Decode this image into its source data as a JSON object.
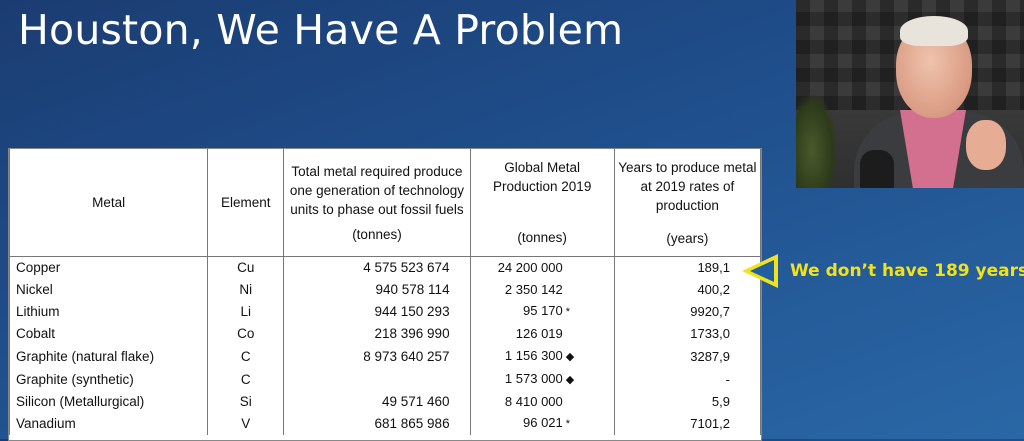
{
  "slide": {
    "title": "Houston, We Have A Problem"
  },
  "table": {
    "headers": {
      "metal": "Metal",
      "element": "Element",
      "total": "Total metal required produce one generation of technology units to phase out fossil fuels",
      "total_unit": "(tonnes)",
      "production": "Global Metal Production 2019",
      "production_unit": "(tonnes)",
      "years": "Years to produce metal at 2019 rates of production",
      "years_unit": "(years)"
    },
    "rows": [
      {
        "metal": "Copper",
        "element": "Cu",
        "total": "4 575 523 674",
        "production": "24 200 000",
        "mark": "",
        "years": "189,1"
      },
      {
        "metal": "Nickel",
        "element": "Ni",
        "total": "940 578 114",
        "production": "2 350 142",
        "mark": "",
        "years": "400,2"
      },
      {
        "metal": "Lithium",
        "element": "Li",
        "total": "944 150 293",
        "production": "95 170",
        "mark": "*",
        "years": "9920,7"
      },
      {
        "metal": "Cobalt",
        "element": "Co",
        "total": "218 396 990",
        "production": "126 019",
        "mark": "",
        "years": "1733,0"
      },
      {
        "metal": "Graphite (natural flake)",
        "element": "C",
        "total": "8 973 640 257",
        "production": "1 156 300",
        "mark": "◆",
        "years": "3287,9"
      },
      {
        "metal": "Graphite (synthetic)",
        "element": "C",
        "total": "",
        "production": "1 573 000",
        "mark": "◆",
        "years": "-"
      },
      {
        "metal": "Silicon (Metallurgical)",
        "element": "Si",
        "total": "49 571 460",
        "production": "8 410 000",
        "mark": "",
        "years": "5,9"
      },
      {
        "metal": "Vanadium",
        "element": "V",
        "total": "681 865 986",
        "production": "96 021",
        "mark": "*",
        "years": "7101,2"
      }
    ]
  },
  "callout": {
    "text": "We don’t have 189 years",
    "color": "#f2e21b",
    "icon": "arrow-left-icon"
  }
}
